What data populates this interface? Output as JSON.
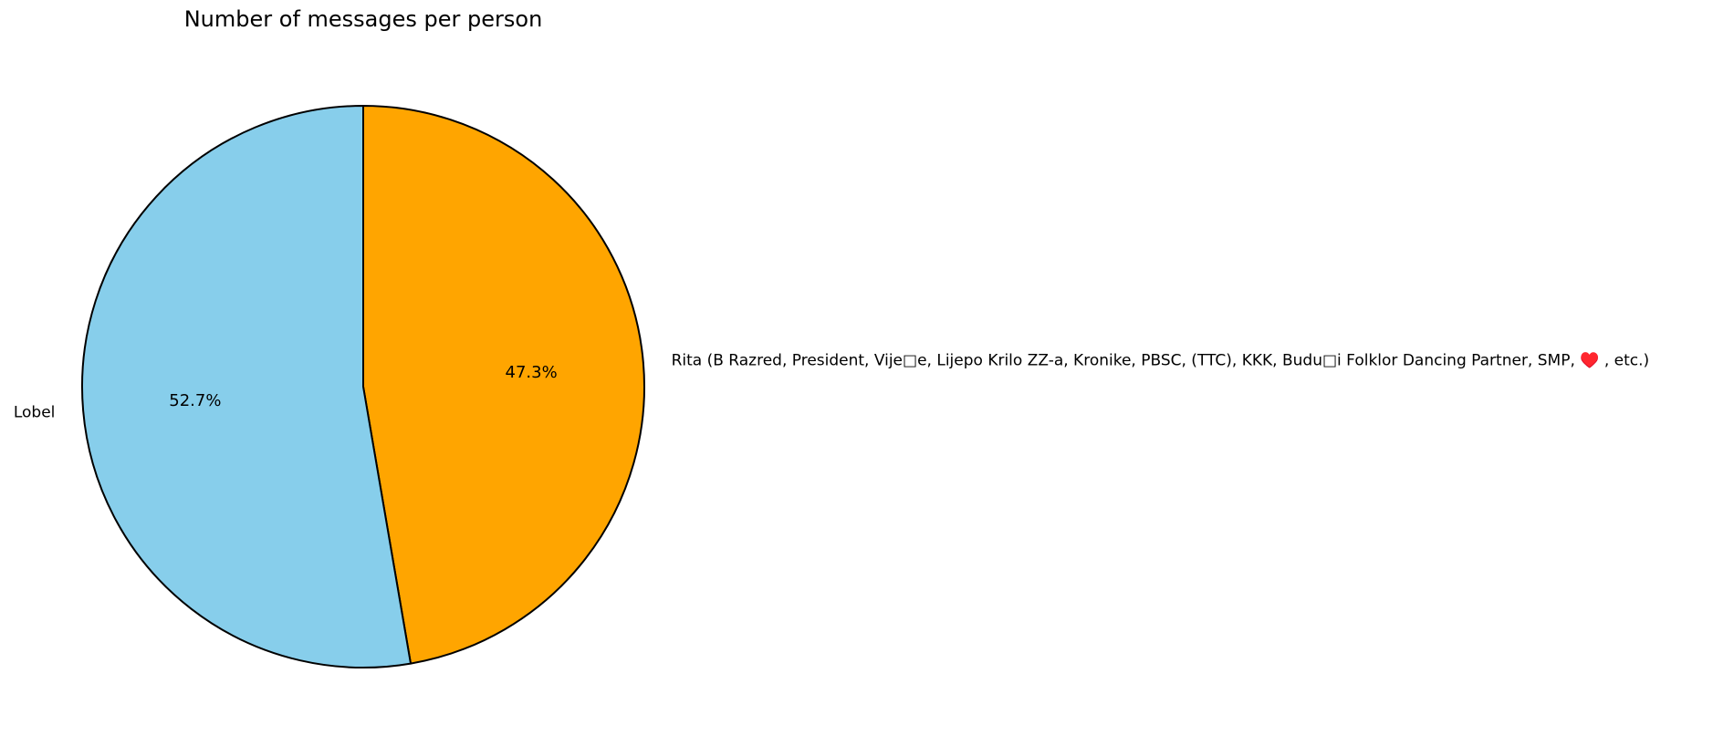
{
  "chart_data": {
    "type": "pie",
    "title": "Number of messages per person",
    "slices": [
      {
        "label": "Rita (B Razred, President, Vije□e, Lijepo Krilo ZZ-a, Kronike, PBSC, (TTC), KKK, Budu□i Folklor Dancing Partner, SMP, ♥️     , etc.)",
        "value": 47.3,
        "pct_label": "47.3%",
        "color": "#FFA500"
      },
      {
        "label": "Lobel",
        "value": 52.7,
        "pct_label": "52.7%",
        "color": "#87CEEB"
      }
    ],
    "start_angle_deg": 90,
    "direction": "clockwise",
    "edge_color": "#000000",
    "legend": "none"
  }
}
